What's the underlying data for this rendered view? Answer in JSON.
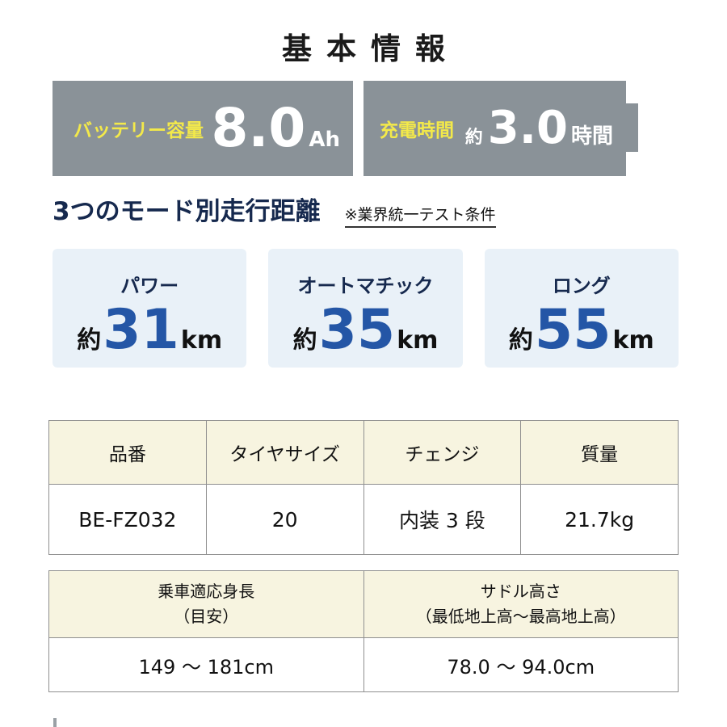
{
  "colors": {
    "banner_gray": "#8a9298",
    "accent_yellow": "#f3e94a",
    "heading_navy": "#16294e",
    "number_blue": "#2456a6",
    "card_bg": "#e9f1f8",
    "table_header_bg": "#f7f4e0",
    "table_border": "#8f8f8f"
  },
  "title": "基本情報",
  "banner": {
    "battery": {
      "label": "バッテリー容量",
      "value": "8.0",
      "unit": "Ah"
    },
    "charging": {
      "label": "充電時間",
      "prefix": "約",
      "value": "3.0",
      "unit": "時間"
    }
  },
  "modes": {
    "heading": "3つのモード別走行距離",
    "note": "※業界統一テスト条件",
    "cards": [
      {
        "name": "パワー",
        "prefix": "約",
        "value": "31",
        "unit": "km"
      },
      {
        "name": "オートマチック",
        "prefix": "約",
        "value": "35",
        "unit": "km"
      },
      {
        "name": "ロング",
        "prefix": "約",
        "value": "55",
        "unit": "km"
      }
    ]
  },
  "spec_table": {
    "headers": [
      "品番",
      "タイヤサイズ",
      "チェンジ",
      "質量"
    ],
    "row": [
      "BE-FZ032",
      "20",
      "内装 3 段",
      "21.7kg"
    ]
  },
  "fit_table": {
    "headers": [
      {
        "line1": "乗車適応身長",
        "line2": "（目安）"
      },
      {
        "line1": "サドル高さ",
        "line2": "（最低地上高～最高地上高）"
      }
    ],
    "row": [
      "149 ～ 181cm",
      "78.0 ～ 94.0cm"
    ]
  }
}
